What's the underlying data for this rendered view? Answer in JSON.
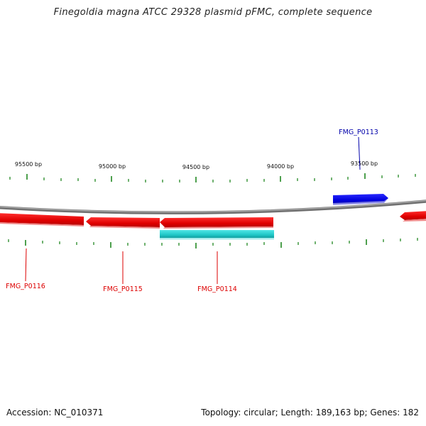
{
  "title": "Finegoldia magna ATCC 29328 plasmid pFMC, complete sequence",
  "footer": {
    "accession": "Accession: NC_010371",
    "stats": "Topology: circular; Length: 189,163 bp; Genes: 182"
  },
  "colors": {
    "forward_gene": "#0000dd",
    "reverse_gene": "#ee0000",
    "other_gene": "#22cccc",
    "backbone": "#888888",
    "ticks": "#228822"
  },
  "ticks": [
    {
      "bp": 95500,
      "label": "95500 bp"
    },
    {
      "bp": 95000,
      "label": "95000 bp"
    },
    {
      "bp": 94500,
      "label": "94500 bp"
    },
    {
      "bp": 94000,
      "label": "94000 bp"
    },
    {
      "bp": 93500,
      "label": "93500 bp"
    }
  ],
  "genes": [
    {
      "label": "FMG_P0113",
      "strand": "forward",
      "color": "#0000dd"
    },
    {
      "label": "FMG_P0114",
      "strand": "reverse",
      "color": "#ee0000"
    },
    {
      "label": "FMG_P0115",
      "strand": "reverse",
      "color": "#ee0000"
    },
    {
      "label": "FMG_P0116",
      "strand": "reverse",
      "color": "#ee0000"
    }
  ]
}
